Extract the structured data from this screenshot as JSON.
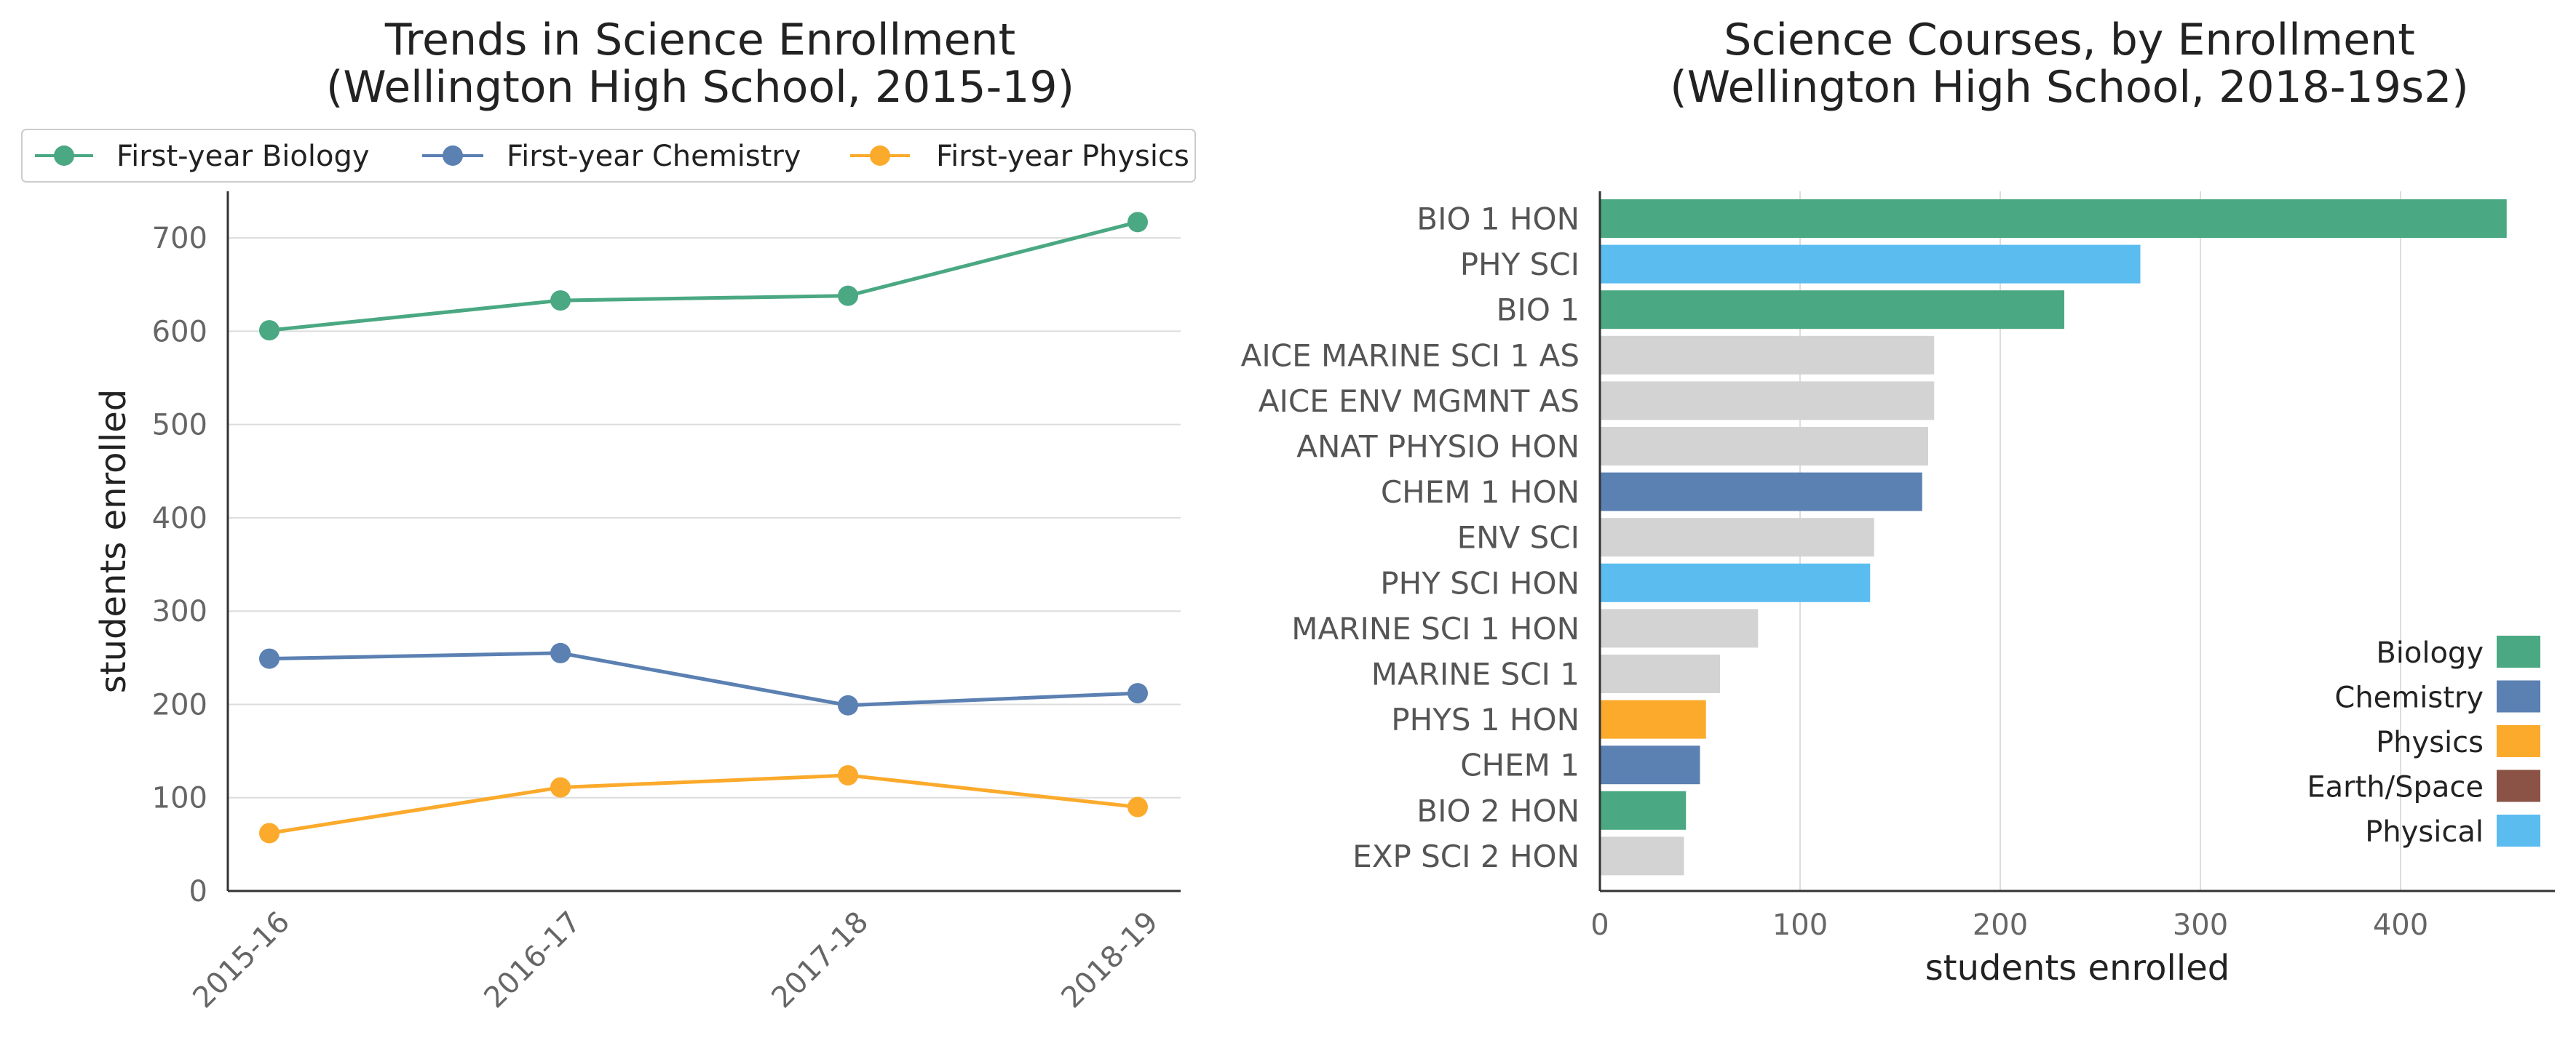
{
  "chart_data": [
    {
      "type": "line",
      "title": "Trends in Science Enrollment",
      "subtitle": "(Wellington High School, 2015-19)",
      "xlabel": "",
      "ylabel": "students enrolled",
      "categories": [
        "2015-16",
        "2016-17",
        "2017-18",
        "2018-19"
      ],
      "series": [
        {
          "name": "First-year Biology",
          "color": "#4aa882",
          "values": [
            601,
            633,
            638,
            717
          ]
        },
        {
          "name": "First-year Chemistry",
          "color": "#5b80b2",
          "values": [
            249,
            255,
            199,
            212
          ]
        },
        {
          "name": "First-year Physics",
          "color": "#fbaa2c",
          "values": [
            62,
            111,
            124,
            90
          ]
        }
      ],
      "ylim": [
        0,
        750
      ],
      "yticks": [
        0,
        100,
        200,
        300,
        400,
        500,
        600,
        700
      ],
      "grid": "horizontal",
      "legend_position": "top"
    },
    {
      "type": "bar",
      "orientation": "horizontal",
      "title": "Science Courses, by Enrollment",
      "subtitle": "(Wellington High School, 2018-19s2)",
      "xlabel": "students enrolled",
      "ylabel": "",
      "categories": [
        "BIO 1 HON",
        "PHY SCI",
        "BIO 1",
        "AICE MARINE SCI 1 AS",
        "AICE ENV MGMNT AS",
        "ANAT PHYSIO HON",
        "CHEM 1 HON",
        "ENV SCI",
        "PHY SCI HON",
        "MARINE SCI 1 HON",
        "MARINE SCI 1",
        "PHYS 1 HON",
        "CHEM 1",
        "BIO 2 HON",
        "EXP SCI 2 HON"
      ],
      "values": [
        453,
        270,
        232,
        167,
        167,
        164,
        161,
        137,
        135,
        79,
        60,
        53,
        50,
        43,
        42
      ],
      "groups": [
        "Biology",
        "Physical",
        "Biology",
        "Other",
        "Other",
        "Other",
        "Chemistry",
        "Other",
        "Physical",
        "Other",
        "Other",
        "Physics",
        "Chemistry",
        "Biology",
        "Other"
      ],
      "group_colors": {
        "Biology": "#4aa882",
        "Chemistry": "#5b80b2",
        "Physics": "#fbaa2c",
        "Earth/Space": "#8b5346",
        "Physical": "#5bbcf0",
        "Other": "#d3d3d3"
      },
      "legend": [
        "Biology",
        "Chemistry",
        "Physics",
        "Earth/Space",
        "Physical"
      ],
      "xlim": [
        0,
        470
      ],
      "xticks": [
        0,
        100,
        200,
        300,
        400
      ],
      "grid": "vertical",
      "legend_position": "lower-right"
    }
  ]
}
